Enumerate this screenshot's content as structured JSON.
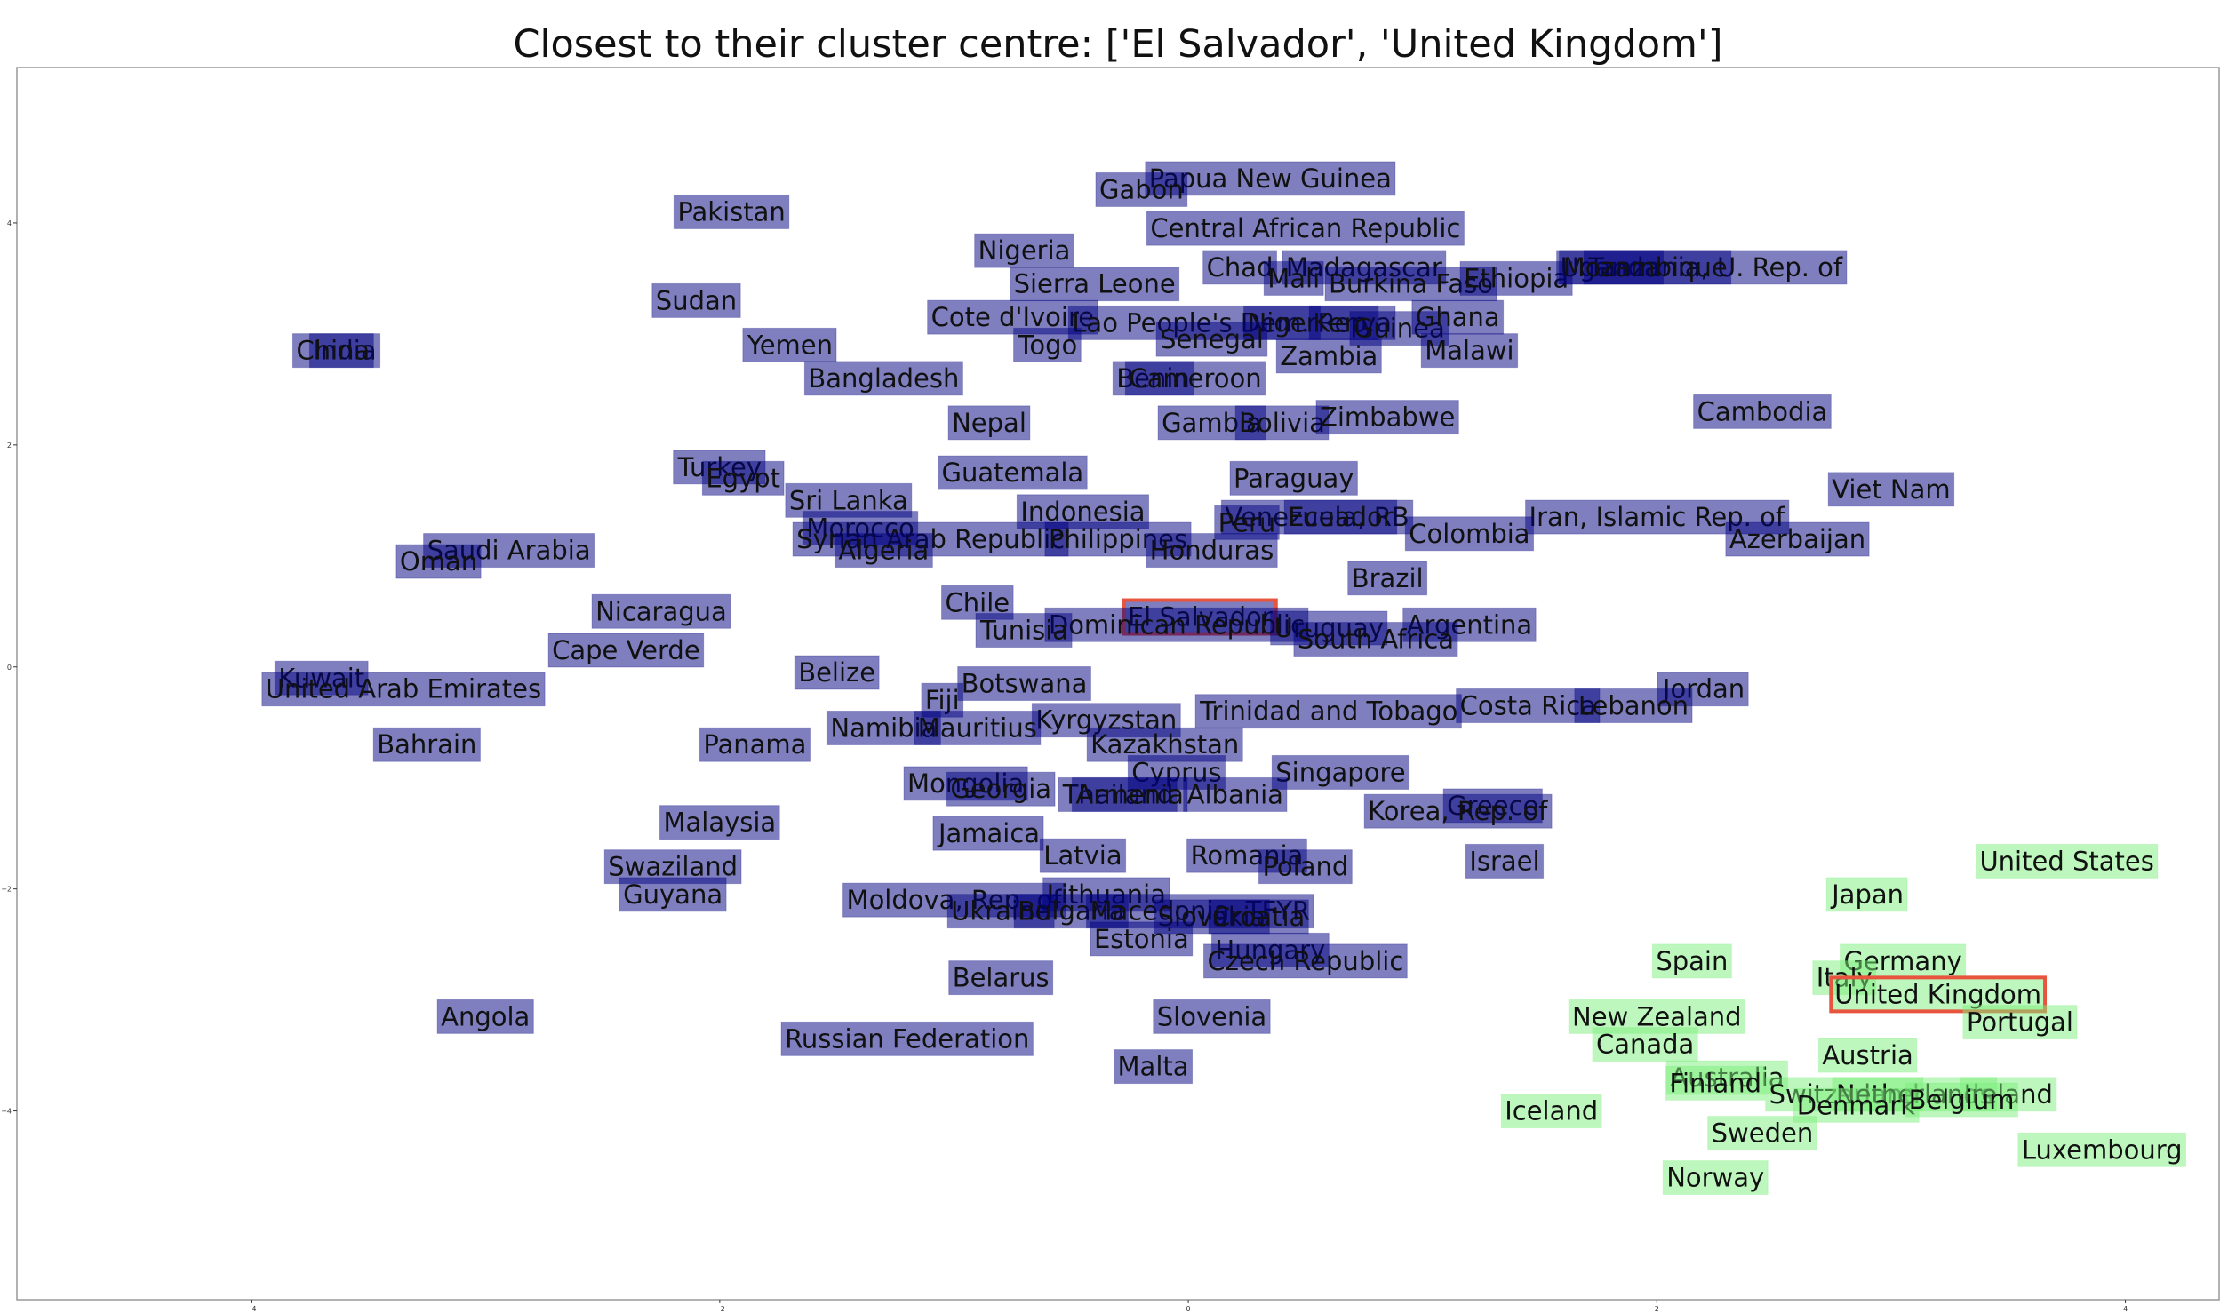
{
  "title": "Closest to their cluster centre: ['El Salvador', 'United Kingdom']",
  "colors": {
    "cluster_0_fill": "#00007f",
    "cluster_0_opacity": 0.5,
    "cluster_1_fill": "#7cf07c",
    "cluster_1_opacity": 0.5,
    "highlight": "#e8553f",
    "frame": "#999999"
  },
  "chart_data": {
    "type": "scatter",
    "title": "Closest to their cluster centre: ['El Salvador', 'United Kingdom']",
    "xlabel": "",
    "ylabel": "",
    "xlim": [
      -5.0,
      4.4
    ],
    "ylim": [
      -5.7,
      5.4
    ],
    "xticks": [
      -4,
      -2,
      0,
      2,
      4
    ],
    "yticks": [
      -4,
      -2,
      0,
      2,
      4
    ],
    "grid": false,
    "legend": "none",
    "highlighted": [
      "El Salvador",
      "United Kingdom"
    ],
    "series": [
      {
        "points": [
          {
            "label": "Papua New Guinea",
            "x": 0.35,
            "y": 4.4
          },
          {
            "label": "Gabon",
            "x": -0.2,
            "y": 4.3
          },
          {
            "label": "Pakistan",
            "x": -1.95,
            "y": 4.1
          },
          {
            "label": "Central African Republic",
            "x": 0.5,
            "y": 3.95
          },
          {
            "label": "Nigeria",
            "x": -0.7,
            "y": 3.75
          },
          {
            "label": "Chad",
            "x": 0.22,
            "y": 3.6
          },
          {
            "label": "Madagascar",
            "x": 0.75,
            "y": 3.6
          },
          {
            "label": "Mali",
            "x": 0.45,
            "y": 3.5
          },
          {
            "label": "Burkina Faso",
            "x": 0.95,
            "y": 3.45
          },
          {
            "label": "Ethiopia",
            "x": 1.4,
            "y": 3.5
          },
          {
            "label": "Uganda",
            "x": 1.8,
            "y": 3.6
          },
          {
            "label": "Tanzania, U. Rep. of",
            "x": 2.25,
            "y": 3.6
          },
          {
            "label": "Mozambique",
            "x": 1.95,
            "y": 3.6
          },
          {
            "label": "Sierra Leone",
            "x": -0.4,
            "y": 3.45
          },
          {
            "label": "Sudan",
            "x": -2.1,
            "y": 3.3
          },
          {
            "label": "Cote d'Ivoire",
            "x": -0.75,
            "y": 3.15
          },
          {
            "label": "Lao People's Dem. Rep.",
            "x": 0.15,
            "y": 3.1
          },
          {
            "label": "Niger",
            "x": 0.4,
            "y": 3.1
          },
          {
            "label": "Kenya",
            "x": 0.7,
            "y": 3.1
          },
          {
            "label": "Guinea",
            "x": 0.9,
            "y": 3.05
          },
          {
            "label": "Ghana",
            "x": 1.15,
            "y": 3.15
          },
          {
            "label": "Senegal",
            "x": 0.1,
            "y": 2.95
          },
          {
            "label": "Togo",
            "x": -0.6,
            "y": 2.9
          },
          {
            "label": "Yemen",
            "x": -1.7,
            "y": 2.9
          },
          {
            "label": "India",
            "x": -3.6,
            "y": 2.85
          },
          {
            "label": "China",
            "x": -3.65,
            "y": 2.85
          },
          {
            "label": "Malawi",
            "x": 1.2,
            "y": 2.85
          },
          {
            "label": "Zambia",
            "x": 0.6,
            "y": 2.8
          },
          {
            "label": "Benin",
            "x": -0.15,
            "y": 2.6
          },
          {
            "label": "Cameroon",
            "x": 0.03,
            "y": 2.6
          },
          {
            "label": "Bangladesh",
            "x": -1.3,
            "y": 2.6
          },
          {
            "label": "Nepal",
            "x": -0.85,
            "y": 2.2
          },
          {
            "label": "Gambia",
            "x": 0.1,
            "y": 2.2
          },
          {
            "label": "Bolivia",
            "x": 0.4,
            "y": 2.2
          },
          {
            "label": "Zimbabwe",
            "x": 0.85,
            "y": 2.25
          },
          {
            "label": "Cambodia",
            "x": 2.45,
            "y": 2.3
          },
          {
            "label": "Turkey",
            "x": -2.0,
            "y": 1.8
          },
          {
            "label": "Egypt",
            "x": -1.9,
            "y": 1.7
          },
          {
            "label": "Paraguay",
            "x": 0.45,
            "y": 1.7
          },
          {
            "label": "Guatemala",
            "x": -0.75,
            "y": 1.75
          },
          {
            "label": "Viet Nam",
            "x": 3.0,
            "y": 1.6
          },
          {
            "label": "Sri Lanka",
            "x": -1.45,
            "y": 1.5
          },
          {
            "label": "Indonesia",
            "x": -0.45,
            "y": 1.4
          },
          {
            "label": "Venezuela, RB",
            "x": 0.55,
            "y": 1.35
          },
          {
            "label": "Ecuador",
            "x": 0.65,
            "y": 1.35
          },
          {
            "label": "Peru",
            "x": 0.25,
            "y": 1.3
          },
          {
            "label": "Iran, Islamic Rep. of",
            "x": 2.0,
            "y": 1.35
          },
          {
            "label": "Colombia",
            "x": 1.2,
            "y": 1.2
          },
          {
            "label": "Azerbaijan",
            "x": 2.6,
            "y": 1.15
          },
          {
            "label": "Morocco",
            "x": -1.4,
            "y": 1.25
          },
          {
            "label": "Syrian Arab Republic",
            "x": -1.1,
            "y": 1.15
          },
          {
            "label": "Philippines",
            "x": -0.3,
            "y": 1.15
          },
          {
            "label": "Algeria",
            "x": -1.3,
            "y": 1.05
          },
          {
            "label": "Honduras",
            "x": 0.1,
            "y": 1.05
          },
          {
            "label": "Saudi Arabia",
            "x": -2.9,
            "y": 1.05
          },
          {
            "label": "Oman",
            "x": -3.2,
            "y": 0.95
          },
          {
            "label": "Brazil",
            "x": 0.85,
            "y": 0.8
          },
          {
            "label": "Nicaragua",
            "x": -2.25,
            "y": 0.5
          },
          {
            "label": "Chile",
            "x": -0.9,
            "y": 0.58
          },
          {
            "label": "El Salvador",
            "x": 0.05,
            "y": 0.45
          },
          {
            "label": "Dominican Republic",
            "x": -0.05,
            "y": 0.38
          },
          {
            "label": "Tunisia",
            "x": -0.7,
            "y": 0.33
          },
          {
            "label": "Uruguay",
            "x": 0.6,
            "y": 0.35
          },
          {
            "label": "Argentina",
            "x": 1.2,
            "y": 0.38
          },
          {
            "label": "South Africa",
            "x": 0.8,
            "y": 0.25
          },
          {
            "label": "Cape Verde",
            "x": -2.4,
            "y": 0.15
          },
          {
            "label": "Belize",
            "x": -1.5,
            "y": -0.05
          },
          {
            "label": "Kuwait",
            "x": -3.7,
            "y": -0.1
          },
          {
            "label": "United Arab Emirates",
            "x": -3.35,
            "y": -0.2
          },
          {
            "label": "Botswana",
            "x": -0.7,
            "y": -0.15
          },
          {
            "label": "Jordan",
            "x": 2.2,
            "y": -0.2
          },
          {
            "label": "Fiji",
            "x": -1.05,
            "y": -0.3
          },
          {
            "label": "Trinidad and Tobago",
            "x": 0.6,
            "y": -0.4
          },
          {
            "label": "Costa Rica",
            "x": 1.45,
            "y": -0.35
          },
          {
            "label": "Lebanon",
            "x": 1.9,
            "y": -0.35
          },
          {
            "label": "Kyrgyzstan",
            "x": -0.35,
            "y": -0.48
          },
          {
            "label": "Namibia",
            "x": -1.3,
            "y": -0.55
          },
          {
            "label": "Mauritius",
            "x": -0.9,
            "y": -0.55
          },
          {
            "label": "Bahrain",
            "x": -3.25,
            "y": -0.7
          },
          {
            "label": "Panama",
            "x": -1.85,
            "y": -0.7
          },
          {
            "label": "Kazakhstan",
            "x": -0.1,
            "y": -0.7
          },
          {
            "label": "Cyprus",
            "x": -0.05,
            "y": -0.95
          },
          {
            "label": "Singapore",
            "x": 0.65,
            "y": -0.95
          },
          {
            "label": "Mongolia",
            "x": -0.95,
            "y": -1.05
          },
          {
            "label": "Georgia",
            "x": -0.8,
            "y": -1.1
          },
          {
            "label": "Thailand",
            "x": -0.3,
            "y": -1.15
          },
          {
            "label": "Armenia",
            "x": -0.25,
            "y": -1.15
          },
          {
            "label": "Albania",
            "x": 0.2,
            "y": -1.15
          },
          {
            "label": "Greece",
            "x": 1.3,
            "y": -1.25
          },
          {
            "label": "Korea, Rep. of",
            "x": 1.15,
            "y": -1.3
          },
          {
            "label": "Jamaica",
            "x": -0.85,
            "y": -1.5
          },
          {
            "label": "Malaysia",
            "x": -2.0,
            "y": -1.4
          },
          {
            "label": "Latvia",
            "x": -0.45,
            "y": -1.7
          },
          {
            "label": "Romania",
            "x": 0.25,
            "y": -1.7
          },
          {
            "label": "Poland",
            "x": 0.5,
            "y": -1.8
          },
          {
            "label": "Israel",
            "x": 1.35,
            "y": -1.75
          },
          {
            "label": "Swaziland",
            "x": -2.2,
            "y": -1.8
          },
          {
            "label": "Guyana",
            "x": -2.2,
            "y": -2.05
          },
          {
            "label": "Moldova, Rep. of",
            "x": -1.0,
            "y": -2.1
          },
          {
            "label": "Lithuania",
            "x": -0.35,
            "y": -2.05
          },
          {
            "label": "Ukraine",
            "x": -0.8,
            "y": -2.2
          },
          {
            "label": "Bulgaria",
            "x": -0.5,
            "y": -2.2
          },
          {
            "label": "Macedonia, TFYR",
            "x": 0.05,
            "y": -2.2
          },
          {
            "label": "Slovakia",
            "x": 0.1,
            "y": -2.25
          },
          {
            "label": "Croatia",
            "x": 0.3,
            "y": -2.25
          },
          {
            "label": "Estonia",
            "x": -0.2,
            "y": -2.45
          },
          {
            "label": "Hungary",
            "x": 0.35,
            "y": -2.55
          },
          {
            "label": "Czech Republic",
            "x": 0.5,
            "y": -2.65
          },
          {
            "label": "Belarus",
            "x": -0.8,
            "y": -2.8
          },
          {
            "label": "Angola",
            "x": -3.0,
            "y": -3.15
          },
          {
            "label": "Slovenia",
            "x": 0.1,
            "y": -3.15
          },
          {
            "label": "Russian Federation",
            "x": -1.2,
            "y": -3.35
          },
          {
            "label": "Malta",
            "x": -0.15,
            "y": -3.6
          }
        ]
      },
      {
        "points": [
          {
            "label": "United States",
            "x": 3.75,
            "y": -1.75
          },
          {
            "label": "Japan",
            "x": 2.9,
            "y": -2.05
          },
          {
            "label": "Spain",
            "x": 2.15,
            "y": -2.65
          },
          {
            "label": "Germany",
            "x": 3.05,
            "y": -2.65
          },
          {
            "label": "Italy",
            "x": 2.8,
            "y": -2.8
          },
          {
            "label": "United Kingdom",
            "x": 3.2,
            "y": -2.95
          },
          {
            "label": "New Zealand",
            "x": 2.0,
            "y": -3.15
          },
          {
            "label": "Portugal",
            "x": 3.55,
            "y": -3.2
          },
          {
            "label": "Canada",
            "x": 1.95,
            "y": -3.4
          },
          {
            "label": "Austria",
            "x": 2.9,
            "y": -3.5
          },
          {
            "label": "Australia",
            "x": 2.3,
            "y": -3.7
          },
          {
            "label": "Finland",
            "x": 2.25,
            "y": -3.75
          },
          {
            "label": "Switzerland",
            "x": 2.8,
            "y": -3.85
          },
          {
            "label": "Netherlands",
            "x": 3.1,
            "y": -3.85
          },
          {
            "label": "Ireland",
            "x": 3.5,
            "y": -3.85
          },
          {
            "label": "Denmark",
            "x": 2.85,
            "y": -3.95
          },
          {
            "label": "Belgium",
            "x": 3.3,
            "y": -3.9
          },
          {
            "label": "Iceland",
            "x": 1.55,
            "y": -4.0
          },
          {
            "label": "Luxembourg",
            "x": 3.9,
            "y": -4.35
          },
          {
            "label": "Sweden",
            "x": 2.45,
            "y": -4.2
          },
          {
            "label": "Norway",
            "x": 2.25,
            "y": -4.6
          }
        ]
      }
    ]
  }
}
